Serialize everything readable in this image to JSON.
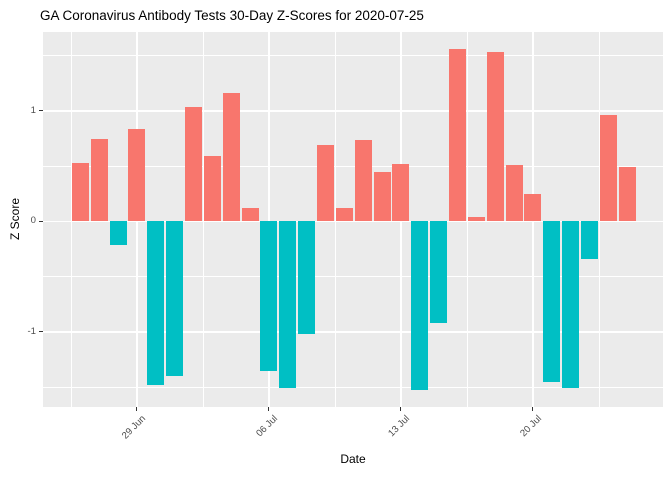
{
  "chart_data": {
    "type": "bar",
    "title": "GA Coronavirus Antibody Tests 30-Day Z-Scores for 2020-07-25",
    "xlabel": "Date",
    "ylabel": "Z Score",
    "x": [
      "2020-06-26",
      "2020-06-27",
      "2020-06-28",
      "2020-06-29",
      "2020-06-30",
      "2020-07-01",
      "2020-07-02",
      "2020-07-03",
      "2020-07-04",
      "2020-07-05",
      "2020-07-06",
      "2020-07-07",
      "2020-07-08",
      "2020-07-09",
      "2020-07-10",
      "2020-07-11",
      "2020-07-12",
      "2020-07-13",
      "2020-07-14",
      "2020-07-15",
      "2020-07-16",
      "2020-07-17",
      "2020-07-18",
      "2020-07-19",
      "2020-07-20",
      "2020-07-21",
      "2020-07-22",
      "2020-07-23",
      "2020-07-24",
      "2020-07-25"
    ],
    "values": [
      0.53,
      0.75,
      -0.21,
      0.84,
      -1.48,
      -1.4,
      1.04,
      0.59,
      1.16,
      0.12,
      -1.35,
      -1.51,
      -1.02,
      0.69,
      0.12,
      0.74,
      0.45,
      0.52,
      -1.53,
      -0.92,
      1.56,
      0.04,
      1.53,
      0.51,
      0.25,
      -1.45,
      -1.51,
      -0.34,
      0.96,
      0.49
    ],
    "x_tick_labels": [
      "29 Jun",
      "06 Jul",
      "13 Jul",
      "20 Jul"
    ],
    "x_tick_day_indices": [
      3,
      10,
      17,
      24
    ],
    "x_minor_day_indices": [
      -0.5,
      6.5,
      13.5,
      20.5,
      27.5
    ],
    "y_tick_labels": [
      "-1",
      "0",
      "1"
    ],
    "y_ticks": [
      -1,
      0,
      1
    ],
    "y_minor_ticks": [
      -1.5,
      -0.5,
      0.5,
      1.5
    ],
    "ylim": [
      -1.68,
      1.715
    ],
    "grid": true,
    "legend": "none",
    "colors": {
      "positive": "#F8766D",
      "negative": "#00BFC4",
      "panel_background": "#EBEBEB",
      "gridline": "#FFFFFF",
      "tick_text": "#4D4D4D",
      "axis_title_text": "#000000",
      "title_text": "#000000",
      "tick_mark": "#333333",
      "plot_background": "#FFFFFF"
    }
  }
}
